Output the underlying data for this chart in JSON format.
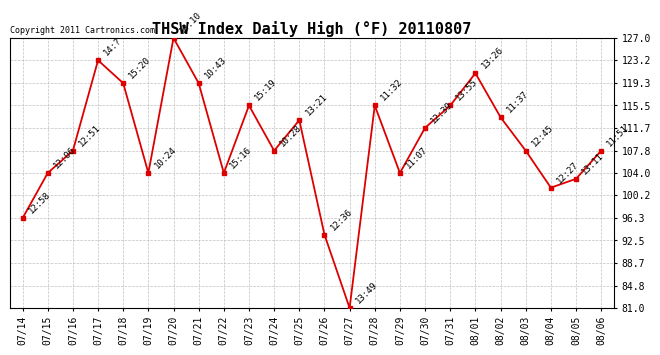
{
  "title": "THSW Index Daily High (°F) 20110807",
  "copyright": "Copyright 2011 Cartronics.com",
  "dates": [
    "07/14",
    "07/15",
    "07/16",
    "07/17",
    "07/18",
    "07/19",
    "07/20",
    "07/21",
    "07/22",
    "07/23",
    "07/24",
    "07/25",
    "07/26",
    "07/27",
    "07/28",
    "07/29",
    "07/30",
    "07/31",
    "08/01",
    "08/02",
    "08/03",
    "08/04",
    "08/05",
    "08/06"
  ],
  "values": [
    96.3,
    104.0,
    107.8,
    123.2,
    119.3,
    104.0,
    127.0,
    119.3,
    104.0,
    115.5,
    107.8,
    113.0,
    93.5,
    81.0,
    115.5,
    104.0,
    111.7,
    115.5,
    121.0,
    113.5,
    107.8,
    101.5,
    103.0,
    107.8
  ],
  "time_labels": [
    "12:58",
    "12:06",
    "12:51",
    "14:?",
    "15:20",
    "10:24",
    "13:10",
    "10:43",
    "15:16",
    "15:19",
    "10:28",
    "13:21",
    "12:36",
    "13:49",
    "11:32",
    "11:07",
    "12:39",
    "13:55",
    "13:26",
    "11:37",
    "12:45",
    "12:27",
    "13:11",
    "11:51"
  ],
  "ytick_vals": [
    81.0,
    84.8,
    88.7,
    92.5,
    96.3,
    100.2,
    104.0,
    107.8,
    111.7,
    115.5,
    119.3,
    123.2,
    127.0
  ],
  "line_color": "#dd0000",
  "grid_color": "#c0c0c0",
  "title_fontsize": 11,
  "tick_fontsize": 7,
  "label_fontsize": 6.5,
  "copyright_fontsize": 6
}
